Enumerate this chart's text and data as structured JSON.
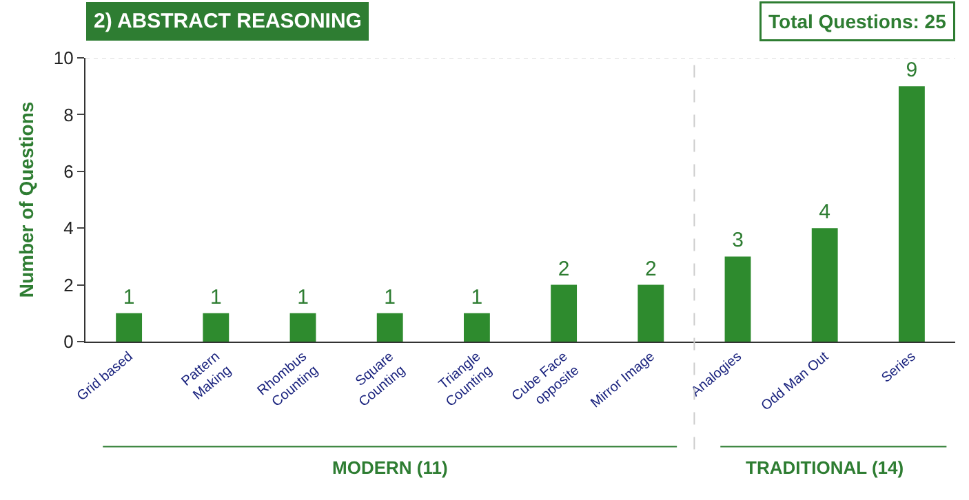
{
  "chart_data": {
    "type": "bar",
    "title": "2) ABSTRACT REASONING",
    "ylabel": "Number of Questions",
    "categories": [
      "Grid based",
      "Pattern Making",
      "Rhombus Counting",
      "Square Counting",
      "Triangle Counting",
      "Cube Face opposite",
      "Mirror Image",
      "Analogies",
      "Odd Man Out",
      "Series"
    ],
    "values": [
      1,
      1,
      1,
      1,
      1,
      2,
      2,
      3,
      4,
      9
    ],
    "color": "#2e8b2e",
    "ylim": [
      0,
      10
    ],
    "yticks": [
      0,
      2,
      4,
      6,
      8,
      10
    ],
    "grid": false,
    "data_labels": true,
    "annotations": [
      "Total Questions: 25",
      "MODERN (11)",
      "TRADITIONAL (14)"
    ]
  }
}
